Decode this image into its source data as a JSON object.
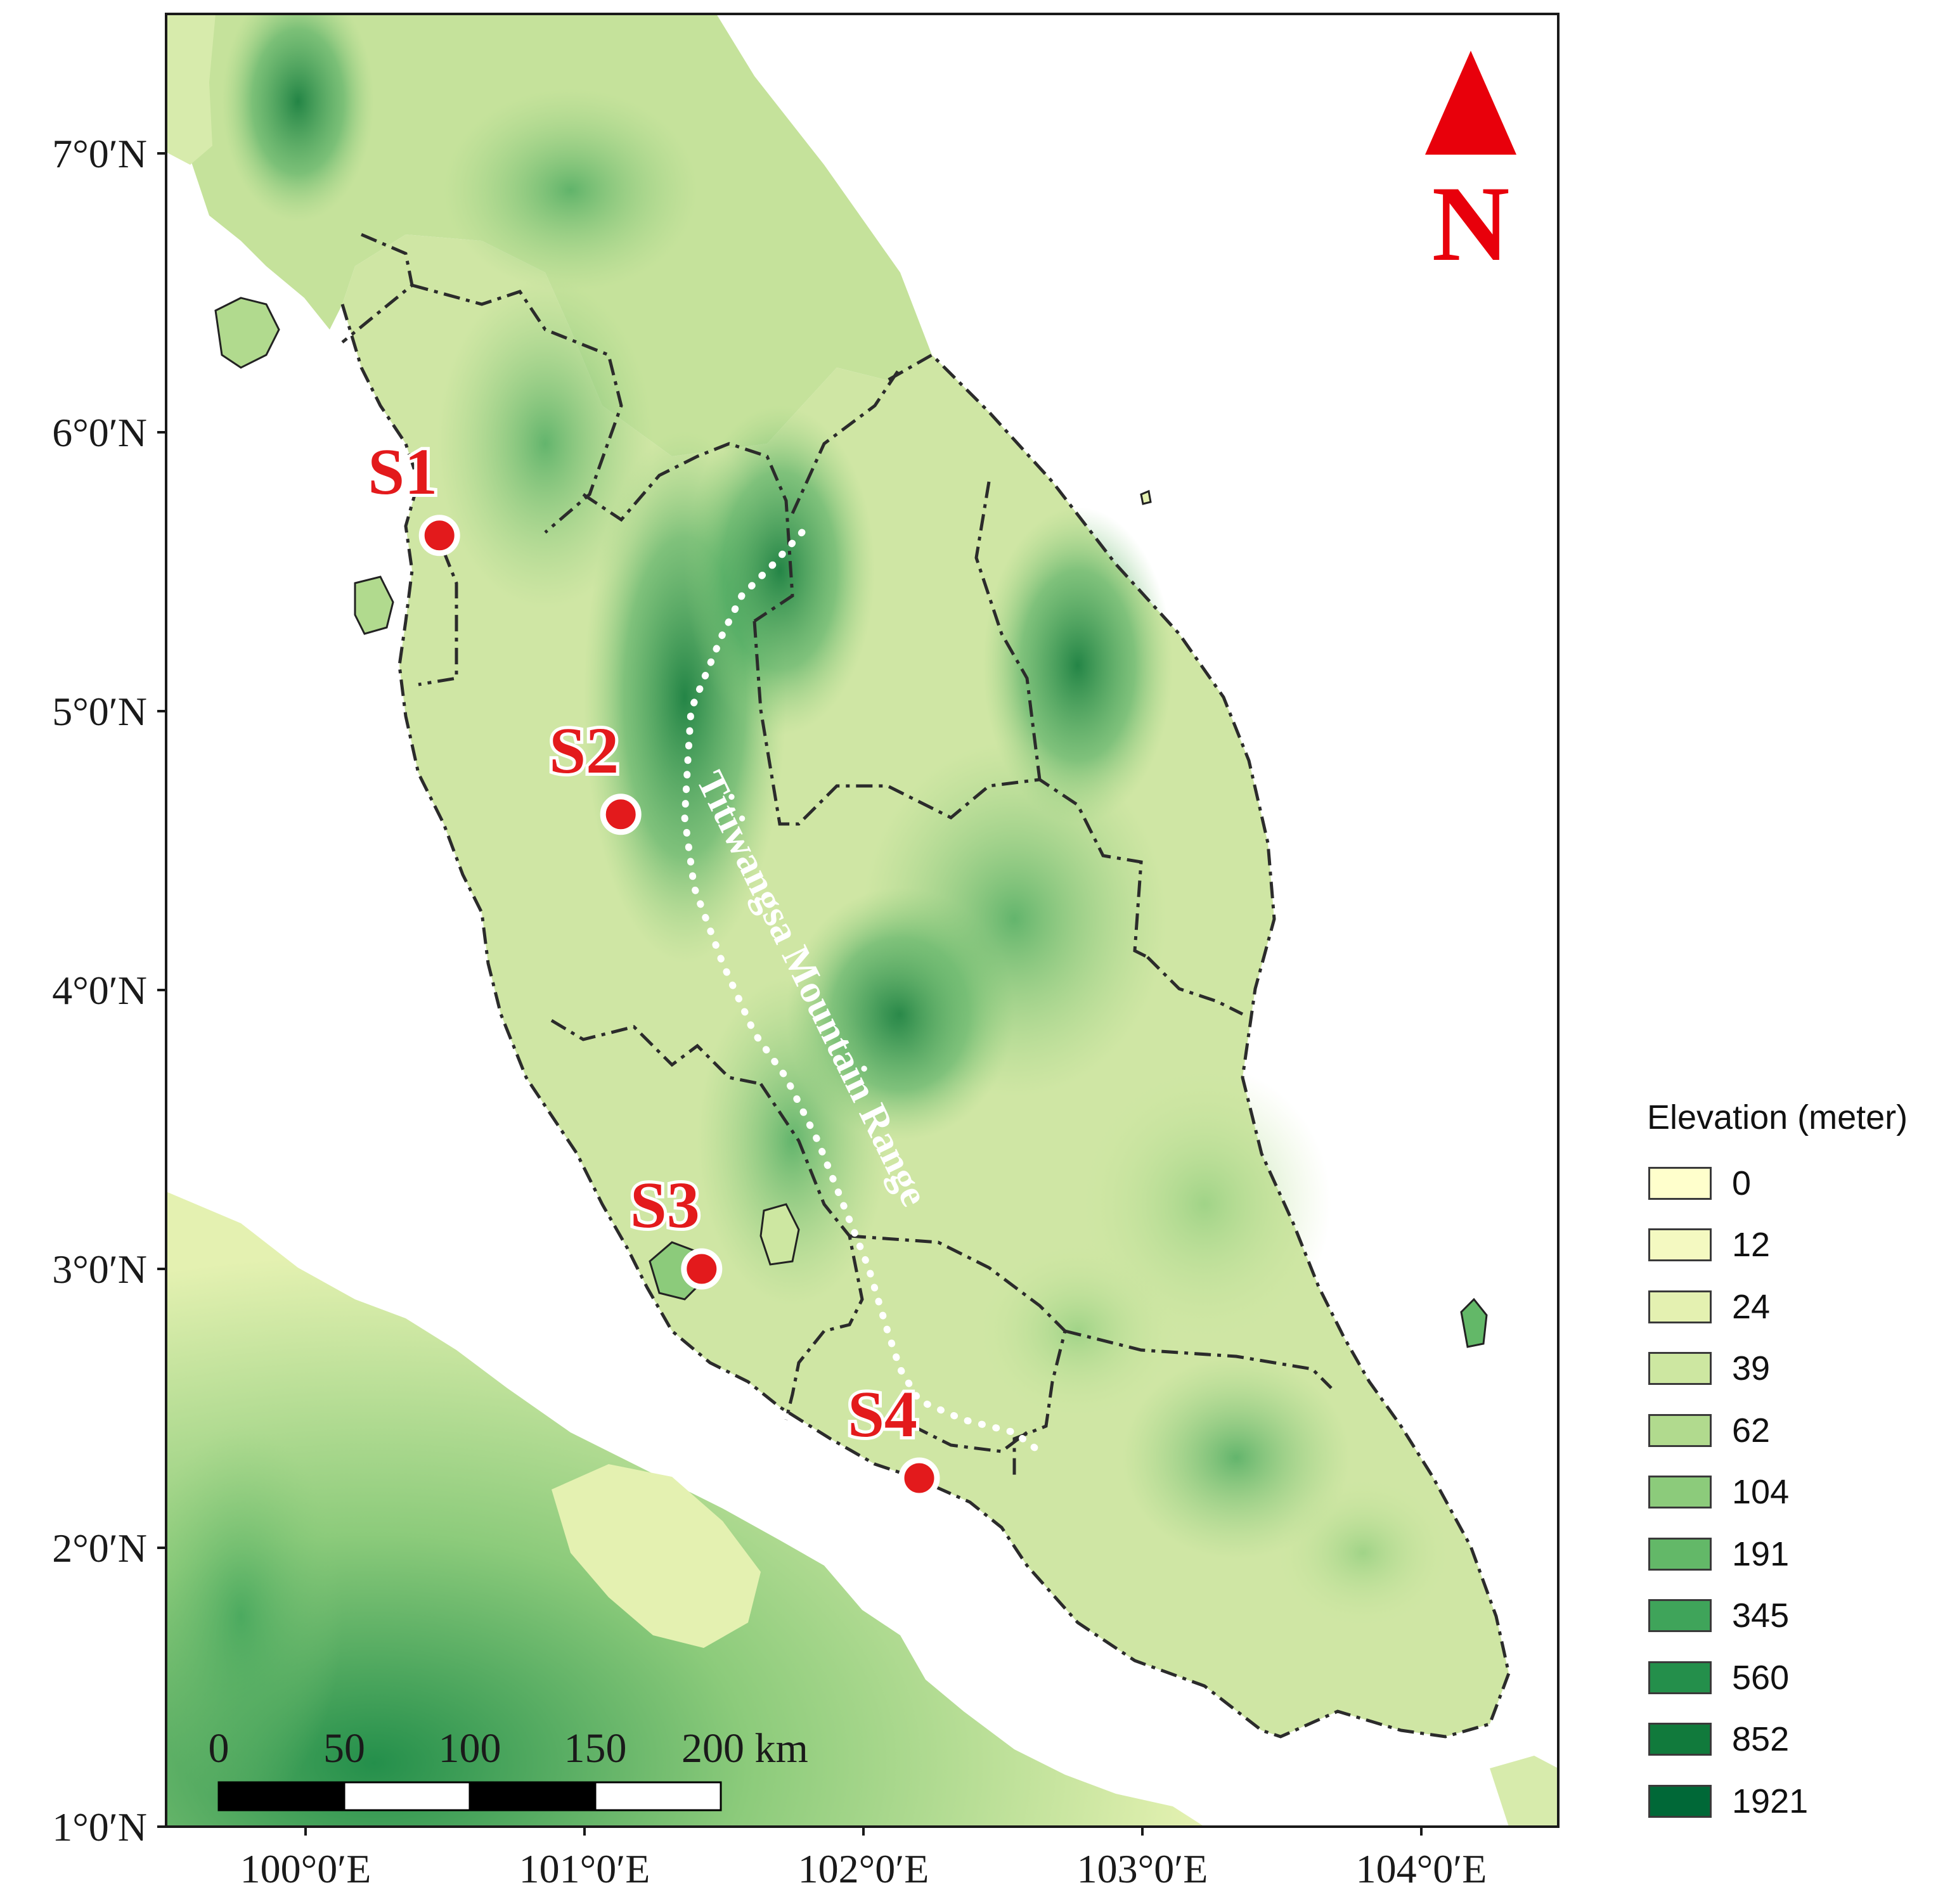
{
  "map": {
    "north_arrow": {
      "label": "N",
      "color": "#e8000b"
    },
    "latitude_labels": [
      "7°0′N",
      "6°0′N",
      "5°0′N",
      "4°0′N",
      "3°0′N",
      "2°0′N",
      "1°0′N"
    ],
    "longitude_labels": [
      "100°0′E",
      "101°0′E",
      "102°0′E",
      "103°0′E",
      "104°0′E"
    ],
    "sites": [
      {
        "label": "S1",
        "lat": 5.63,
        "lon": 100.48
      },
      {
        "label": "S2",
        "lat": 4.63,
        "lon": 101.13
      },
      {
        "label": "S3",
        "lat": 3.0,
        "lon": 101.42
      },
      {
        "label": "S4",
        "lat": 2.25,
        "lon": 102.2
      }
    ],
    "site_color": "#e31a1c",
    "mountain_range_label": "Titiwangsa Mountain Range",
    "scale_bar": {
      "labels": [
        "0",
        "50",
        "100",
        "150",
        "200 km"
      ]
    }
  },
  "legend": {
    "title": "Elevation (meter)",
    "items": [
      {
        "value": "0",
        "color": "#ffffcc"
      },
      {
        "value": "12",
        "color": "#f4f9c1"
      },
      {
        "value": "24",
        "color": "#e4f1b1"
      },
      {
        "value": "39",
        "color": "#cde7a1"
      },
      {
        "value": "62",
        "color": "#b1da8e"
      },
      {
        "value": "104",
        "color": "#8ccb7b"
      },
      {
        "value": "191",
        "color": "#63b868"
      },
      {
        "value": "345",
        "color": "#3fa45a"
      },
      {
        "value": "560",
        "color": "#248f4b"
      },
      {
        "value": "852",
        "color": "#117a3c"
      },
      {
        "value": "1921",
        "color": "#006837"
      }
    ]
  }
}
